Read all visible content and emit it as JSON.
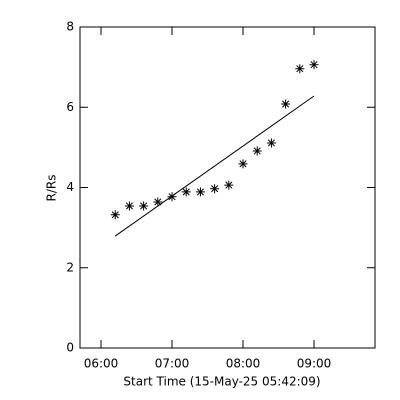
{
  "chart_data": {
    "type": "scatter",
    "x_label": "Start Time (15-May-25 05:42:09)",
    "y_label": "R/Rs",
    "xlim": [
      5.704,
      9.859
    ],
    "ylim": [
      0,
      8
    ],
    "xticks": [
      {
        "value": 6,
        "label": "06:00"
      },
      {
        "value": 7,
        "label": "07:00"
      },
      {
        "value": 8,
        "label": "08:00"
      },
      {
        "value": 9,
        "label": "09:00"
      }
    ],
    "yticks": [
      0,
      2,
      4,
      6,
      8
    ],
    "grid": false,
    "series": [
      {
        "kind": "scatter",
        "color": "#000000",
        "x": [
          6.2,
          6.4,
          6.6,
          6.8,
          7.0,
          7.2,
          7.4,
          7.6,
          7.8,
          8.0,
          8.2,
          8.4,
          8.6,
          8.8,
          9.0
        ],
        "values": [
          3.32,
          3.54,
          3.54,
          3.64,
          3.77,
          3.89,
          3.89,
          3.97,
          4.06,
          4.59,
          4.91,
          5.11,
          6.08,
          6.96,
          7.06
        ]
      },
      {
        "kind": "line",
        "color": "#000000",
        "x": [
          6.2,
          9.0
        ],
        "values": [
          2.79,
          6.28
        ]
      }
    ]
  }
}
